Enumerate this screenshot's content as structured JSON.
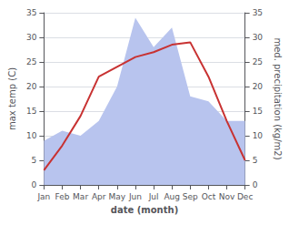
{
  "chart_data": {
    "type": "line",
    "xlabel": "date (month)",
    "ylabel": "max temp (C)",
    "y2label": "med. precipitation (kg/m2)",
    "categories": [
      "Jan",
      "Feb",
      "Mar",
      "Apr",
      "May",
      "Jun",
      "Jul",
      "Aug",
      "Sep",
      "Oct",
      "Nov",
      "Dec"
    ],
    "series": [
      {
        "type": "area",
        "axis": "y2",
        "color": "#b8c4ee",
        "values": [
          9,
          11,
          10,
          13,
          20,
          34,
          28,
          32,
          18,
          17,
          13,
          13
        ]
      },
      {
        "type": "line",
        "color": "#c83232",
        "values": [
          3,
          8,
          14,
          22,
          24,
          26,
          27,
          28.5,
          29,
          22,
          13,
          5
        ]
      }
    ],
    "ylim": [
      0,
      35
    ],
    "yticks": [
      0,
      5,
      10,
      15,
      20,
      25,
      30,
      35
    ],
    "y2lim": [
      0,
      35
    ],
    "y2ticks": [
      0,
      5,
      10,
      15,
      20,
      25,
      30,
      35
    ],
    "grid": true
  }
}
